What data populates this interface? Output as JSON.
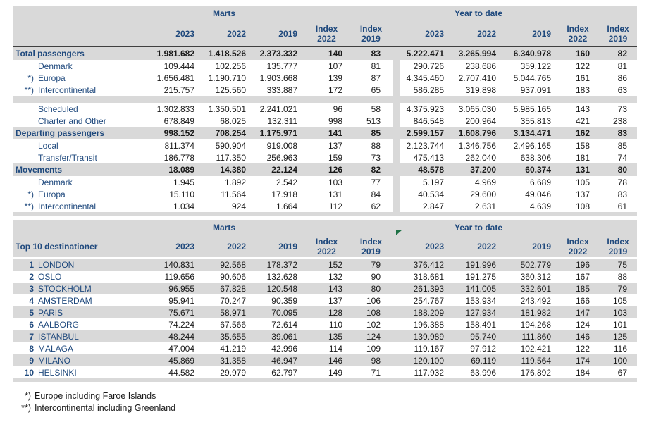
{
  "header": {
    "month_group": "Marts",
    "ytd_group": "Year to date",
    "years": [
      "2023",
      "2022",
      "2019"
    ],
    "index_label": "Index",
    "index_years": [
      "2022",
      "2019"
    ]
  },
  "colors": {
    "header_text_blue": "#1F497D",
    "row_shade_gray": "#D9D9D9",
    "flag_green": "#1E7145"
  },
  "table1": {
    "rows": [
      {
        "kind": "section",
        "marker": "",
        "label": "Total passengers",
        "values": [
          "1.981.682",
          "1.418.526",
          "2.373.332",
          "140",
          "83",
          "5.222.471",
          "3.265.994",
          "6.340.978",
          "160",
          "82"
        ]
      },
      {
        "kind": "sub",
        "marker": "",
        "label": "Denmark",
        "values": [
          "109.444",
          "102.256",
          "135.777",
          "107",
          "81",
          "290.726",
          "238.686",
          "359.122",
          "122",
          "81"
        ]
      },
      {
        "kind": "sub",
        "marker": "*)",
        "label": "Europa",
        "values": [
          "1.656.481",
          "1.190.710",
          "1.903.668",
          "139",
          "87",
          "4.345.460",
          "2.707.410",
          "5.044.765",
          "161",
          "86"
        ]
      },
      {
        "kind": "sub",
        "marker": "**)",
        "label": "Intercontinental",
        "values": [
          "215.757",
          "125.560",
          "333.887",
          "172",
          "65",
          "586.285",
          "319.898",
          "937.091",
          "183",
          "63"
        ]
      },
      {
        "kind": "sep",
        "marker": "",
        "label": "",
        "values": []
      },
      {
        "kind": "sub",
        "marker": "",
        "label": "Scheduled",
        "values": [
          "1.302.833",
          "1.350.501",
          "2.241.021",
          "96",
          "58",
          "4.375.923",
          "3.065.030",
          "5.985.165",
          "143",
          "73"
        ]
      },
      {
        "kind": "sub",
        "marker": "",
        "label": "Charter and Other",
        "values": [
          "678.849",
          "68.025",
          "132.311",
          "998",
          "513",
          "846.548",
          "200.964",
          "355.813",
          "421",
          "238"
        ]
      },
      {
        "kind": "section",
        "marker": "",
        "label": "Departing passengers",
        "values": [
          "998.152",
          "708.254",
          "1.175.971",
          "141",
          "85",
          "2.599.157",
          "1.608.796",
          "3.134.471",
          "162",
          "83"
        ]
      },
      {
        "kind": "sub",
        "marker": "",
        "label": "Local",
        "values": [
          "811.374",
          "590.904",
          "919.008",
          "137",
          "88",
          "2.123.744",
          "1.346.756",
          "2.496.165",
          "158",
          "85"
        ]
      },
      {
        "kind": "sub",
        "marker": "",
        "label": "Transfer/Transit",
        "values": [
          "186.778",
          "117.350",
          "256.963",
          "159",
          "73",
          "475.413",
          "262.040",
          "638.306",
          "181",
          "74"
        ]
      },
      {
        "kind": "section",
        "marker": "",
        "label": "Movements",
        "values": [
          "18.089",
          "14.380",
          "22.124",
          "126",
          "82",
          "48.578",
          "37.200",
          "60.374",
          "131",
          "80"
        ]
      },
      {
        "kind": "sub",
        "marker": "",
        "label": "Denmark",
        "values": [
          "1.945",
          "1.892",
          "2.542",
          "103",
          "77",
          "5.197",
          "4.969",
          "6.689",
          "105",
          "78"
        ]
      },
      {
        "kind": "sub",
        "marker": "*)",
        "label": "Europa",
        "values": [
          "15.110",
          "11.564",
          "17.918",
          "131",
          "84",
          "40.534",
          "29.600",
          "49.046",
          "137",
          "83"
        ]
      },
      {
        "kind": "sub",
        "marker": "**)",
        "label": "Intercontinental",
        "values": [
          "1.034",
          "924",
          "1.664",
          "112",
          "62",
          "2.847",
          "2.631",
          "4.639",
          "108",
          "61"
        ]
      }
    ]
  },
  "table2": {
    "title": "Top 10 destinationer",
    "rows": [
      {
        "rank": "1",
        "label": "LONDON",
        "values": [
          "140.831",
          "92.568",
          "178.372",
          "152",
          "79",
          "376.412",
          "191.996",
          "502.779",
          "196",
          "75"
        ]
      },
      {
        "rank": "2",
        "label": "OSLO",
        "values": [
          "119.656",
          "90.606",
          "132.628",
          "132",
          "90",
          "318.681",
          "191.275",
          "360.312",
          "167",
          "88"
        ]
      },
      {
        "rank": "3",
        "label": "STOCKHOLM",
        "values": [
          "96.955",
          "67.828",
          "120.548",
          "143",
          "80",
          "261.393",
          "141.005",
          "332.601",
          "185",
          "79"
        ]
      },
      {
        "rank": "4",
        "label": "AMSTERDAM",
        "values": [
          "95.941",
          "70.247",
          "90.359",
          "137",
          "106",
          "254.767",
          "153.934",
          "243.492",
          "166",
          "105"
        ]
      },
      {
        "rank": "5",
        "label": "PARIS",
        "values": [
          "75.671",
          "58.971",
          "70.095",
          "128",
          "108",
          "188.209",
          "127.934",
          "181.982",
          "147",
          "103"
        ]
      },
      {
        "rank": "6",
        "label": "AALBORG",
        "values": [
          "74.224",
          "67.566",
          "72.614",
          "110",
          "102",
          "196.388",
          "158.491",
          "194.268",
          "124",
          "101"
        ]
      },
      {
        "rank": "7",
        "label": "ISTANBUL",
        "values": [
          "48.244",
          "35.655",
          "39.061",
          "135",
          "124",
          "139.989",
          "95.740",
          "111.860",
          "146",
          "125"
        ]
      },
      {
        "rank": "8",
        "label": "MALAGA",
        "values": [
          "47.004",
          "41.219",
          "42.996",
          "114",
          "109",
          "119.167",
          "97.912",
          "102.421",
          "122",
          "116"
        ]
      },
      {
        "rank": "9",
        "label": "MILANO",
        "values": [
          "45.869",
          "31.358",
          "46.947",
          "146",
          "98",
          "120.100",
          "69.119",
          "119.564",
          "174",
          "100"
        ]
      },
      {
        "rank": "10",
        "label": "HELSINKI",
        "values": [
          "44.582",
          "29.979",
          "62.797",
          "149",
          "71",
          "117.932",
          "63.996",
          "176.892",
          "184",
          "67"
        ]
      }
    ]
  },
  "footnotes": [
    {
      "marker": "*)",
      "text": "Europe including Faroe Islands"
    },
    {
      "marker": "**)",
      "text": "Intercontinental including Greenland"
    }
  ]
}
